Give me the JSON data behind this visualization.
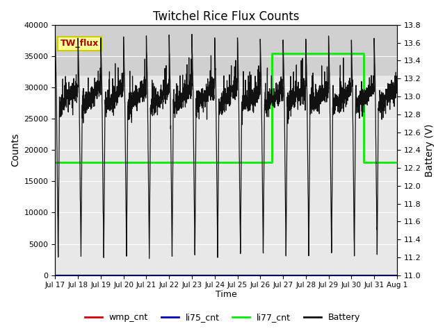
{
  "title": "Twitchel Rice Flux Counts",
  "xlabel": "Time",
  "ylabel_left": "Counts",
  "ylabel_right": "Battery (V)",
  "ylim_left": [
    0,
    40000
  ],
  "ylim_right": [
    11.0,
    13.8
  ],
  "background_color": "#ffffff",
  "plot_bg_color": "#e8e8e8",
  "shaded_region_low": 32000,
  "shaded_region_high": 40000,
  "shaded_color": "#d0d0d0",
  "tw_flux_label": "TW_flux",
  "tw_flux_box_facecolor": "#ffff99",
  "tw_flux_text_color": "#aa0000",
  "tw_flux_border_color": "#cccc00",
  "legend_labels": [
    "wmp_cnt",
    "li75_cnt",
    "li77_cnt",
    "Battery"
  ],
  "legend_colors": [
    "#dd0000",
    "#0000bb",
    "#00ee00",
    "#111111"
  ],
  "xtick_labels": [
    "Jul 17",
    "Jul 18",
    "Jul 19",
    "Jul 20",
    "Jul 21",
    "Jul 22",
    "Jul 23",
    "Jul 24",
    "Jul 25",
    "Jul 26",
    "Jul 27",
    "Jul 28",
    "Jul 29",
    "Jul 30",
    "Jul 31",
    "Aug 1"
  ],
  "xlim": [
    0,
    15
  ],
  "yticks_left": [
    0,
    5000,
    10000,
    15000,
    20000,
    25000,
    30000,
    35000,
    40000
  ],
  "yticks_right": [
    11.0,
    11.2,
    11.4,
    11.6,
    11.8,
    12.0,
    12.2,
    12.4,
    12.6,
    12.8,
    13.0,
    13.2,
    13.4,
    13.6,
    13.8
  ],
  "li77_before": 18000,
  "li77_after": 35500,
  "li77_jump_day": 9.5,
  "li77_drop_day": 13.55,
  "li77_color": "#00ee00",
  "li77_linewidth": 2.0,
  "battery_line_color": "#111111",
  "battery_linewidth": 0.9,
  "wmp_color": "#dd0000",
  "li75_color": "#0000bb",
  "grid_color": "#ffffff",
  "grid_linewidth": 0.8
}
